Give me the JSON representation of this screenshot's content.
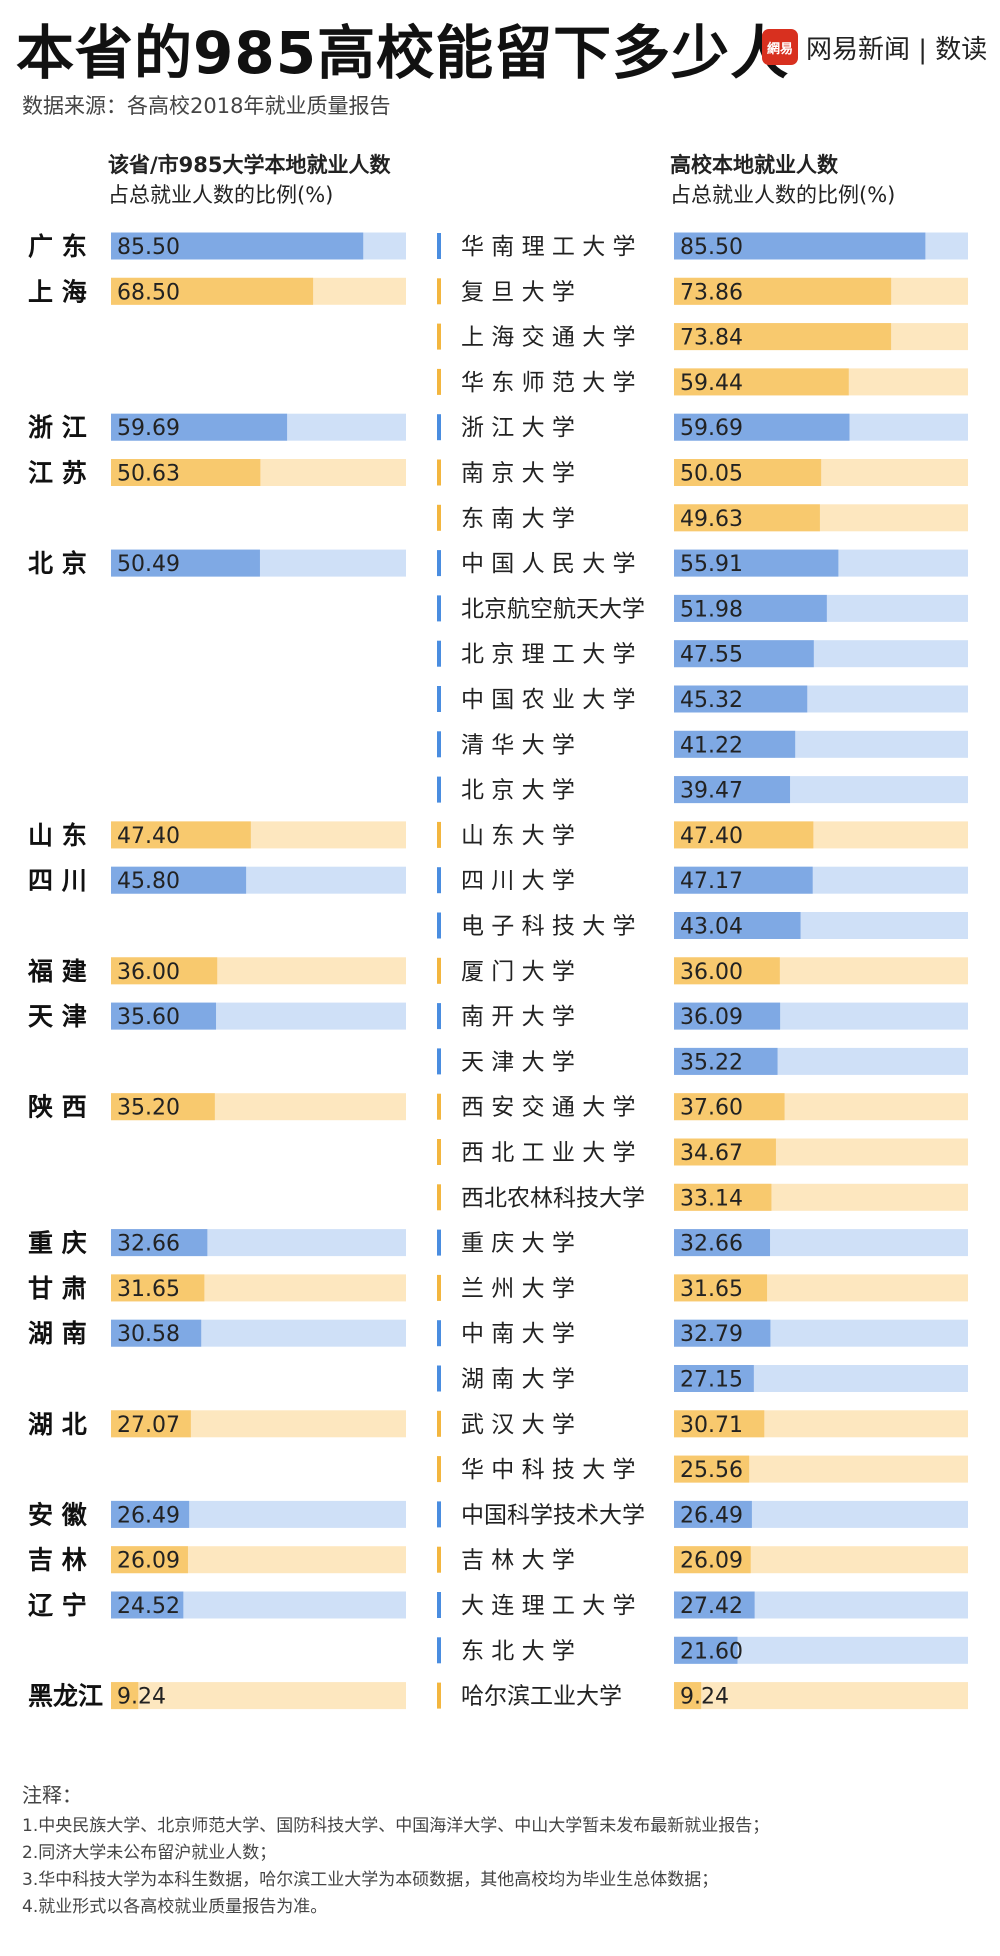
{
  "title": "本省的985高校能留下多少人",
  "source": "数据来源：各高校2018年就业质量报告",
  "brand": {
    "icon_text": "網易",
    "text": "网易新闻 | 数读"
  },
  "colors": {
    "blue_fill": "#7fa9e4",
    "blue_track": "#cfe0f7",
    "orange_fill": "#f8c96e",
    "orange_track": "#fde7bf",
    "blue_marker": "#4a8de0",
    "orange_marker": "#f3b63f"
  },
  "left_header": {
    "line1": "该省/市985大学本地就业人数",
    "line2": "占总就业人数的比例(%)"
  },
  "right_header": {
    "line1": "高校本地就业人数",
    "line2": "占总就业人数的比例(%)"
  },
  "chart_data": [
    {
      "type": "bar",
      "title": "该省/市985大学本地就业人数占总就业人数的比例(%)",
      "xlim": [
        0,
        100
      ],
      "series": [
        {
          "values": [
            85.5,
            68.5,
            59.69,
            50.63,
            50.49,
            47.4,
            45.8,
            36.0,
            35.6,
            35.2,
            32.66,
            31.65,
            30.58,
            27.07,
            26.49,
            26.09,
            24.52,
            9.24
          ],
          "labels": [
            "85.50",
            "68.50",
            "59.69",
            "50.63",
            "50.49",
            "47.40",
            "45.80",
            "36.00",
            "35.60",
            "35.20",
            "32.66",
            "31.65",
            "30.58",
            "27.07",
            "26.49",
            "26.09",
            "24.52",
            "9.24"
          ]
        }
      ],
      "categories": [
        "广 东",
        "上 海",
        "浙 江",
        "江 苏",
        "北 京",
        "山 东",
        "四 川",
        "福 建",
        "天 津",
        "陕 西",
        "重 庆",
        "甘 肃",
        "湖 南",
        "湖 北",
        "安 徽",
        "吉 林",
        "辽 宁",
        "黑龙江"
      ],
      "row_index": [
        0,
        1,
        4,
        5,
        7,
        13,
        14,
        16,
        17,
        19,
        22,
        23,
        24,
        26,
        28,
        29,
        30,
        32
      ],
      "color_group": [
        "blue",
        "orange",
        "blue",
        "orange",
        "blue",
        "orange",
        "blue",
        "orange",
        "blue",
        "orange",
        "blue",
        "orange",
        "blue",
        "orange",
        "blue",
        "orange",
        "blue",
        "orange"
      ]
    },
    {
      "type": "bar",
      "title": "高校本地就业人数占总就业人数的比例(%)",
      "xlim": [
        0,
        100
      ],
      "categories": [
        "华南理工大学",
        "复旦大学",
        "上海交通大学",
        "华东师范大学",
        "浙江大学",
        "南京大学",
        "东南大学",
        "中国人民大学",
        "北京航空航天大学",
        "北京理工大学",
        "中国农业大学",
        "清华大学",
        "北京大学",
        "山东大学",
        "四川大学",
        "电子科技大学",
        "厦门大学",
        "南开大学",
        "天津大学",
        "西安交通大学",
        "西北工业大学",
        "西北农林科技大学",
        "重庆大学",
        "兰州大学",
        "中南大学",
        "湖南大学",
        "武汉大学",
        "华中科技大学",
        "中国科学技术大学",
        "吉林大学",
        "大连理工大学",
        "东北大学",
        "哈尔滨工业大学"
      ],
      "series": [
        {
          "values": [
            85.5,
            73.86,
            73.84,
            59.44,
            59.69,
            50.05,
            49.63,
            55.91,
            51.98,
            47.55,
            45.32,
            41.22,
            39.47,
            47.4,
            47.17,
            43.04,
            36.0,
            36.09,
            35.22,
            37.6,
            34.67,
            33.14,
            32.66,
            31.65,
            32.79,
            27.15,
            30.71,
            25.56,
            26.49,
            26.09,
            27.42,
            21.6,
            9.24
          ],
          "labels": [
            "85.50",
            "73.86",
            "73.84",
            "59.44",
            "59.69",
            "50.05",
            "49.63",
            "55.91",
            "51.98",
            "47.55",
            "45.32",
            "41.22",
            "39.47",
            "47.40",
            "47.17",
            "43.04",
            "36.00",
            "36.09",
            "35.22",
            "37.60",
            "34.67",
            "33.14",
            "32.66",
            "31.65",
            "32.79",
            "27.15",
            "30.71",
            "25.56",
            "26.49",
            "26.09",
            "27.42",
            "21.60",
            "9.24"
          ]
        }
      ],
      "display_names": [
        "华 南 理 工 大 学",
        "复   旦   大   学",
        "上 海 交 通 大 学",
        "华 东 师 范 大 学",
        "浙   江   大   学",
        "南   京   大   学",
        "东   南   大   学",
        "中 国 人 民 大 学",
        "北京航空航天大学",
        "北 京 理 工 大 学",
        "中 国 农 业 大 学",
        "清   华   大   学",
        "北   京   大   学",
        "山   东   大   学",
        "四   川   大   学",
        "电 子 科 技 大 学",
        "厦   门   大   学",
        "南   开   大   学",
        "天   津   大   学",
        "西 安 交 通 大 学",
        "西 北 工 业 大 学",
        "西北农林科技大学",
        "重   庆   大   学",
        "兰   州   大   学",
        "中   南   大   学",
        "湖   南   大   学",
        "武   汉   大   学",
        "华 中 科 技 大 学",
        "中国科学技术大学",
        "吉   林   大   学",
        "大 连 理 工 大 学",
        "东   北   大   学",
        "哈尔滨工业大学"
      ],
      "color_group": [
        "blue",
        "orange",
        "orange",
        "orange",
        "blue",
        "orange",
        "orange",
        "blue",
        "blue",
        "blue",
        "blue",
        "blue",
        "blue",
        "orange",
        "blue",
        "blue",
        "orange",
        "blue",
        "blue",
        "orange",
        "orange",
        "orange",
        "blue",
        "orange",
        "blue",
        "blue",
        "orange",
        "orange",
        "blue",
        "orange",
        "blue",
        "blue",
        "orange"
      ]
    }
  ],
  "notes": {
    "title": "注释：",
    "items": [
      "1.中央民族大学、北京师范大学、国防科技大学、中国海洋大学、中山大学暂未发布最新就业报告；",
      "2.同济大学未公布留沪就业人数；",
      "3.华中科技大学为本科生数据，哈尔滨工业大学为本硕数据，其他高校均为毕业生总体数据；",
      "4.就业形式以各高校就业质量报告为准。"
    ]
  }
}
